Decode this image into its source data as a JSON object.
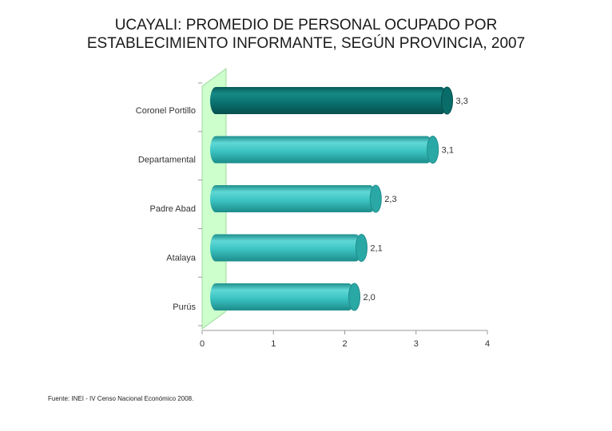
{
  "title_line1": "UCAYALI: PROMEDIO DE PERSONAL OCUPADO POR",
  "title_line2": "ESTABLECIMIENTO INFORMANTE, SEGÚN PROVINCIA, 2007",
  "source": "Fuente: INEI - IV Censo Nacional Económico 2008.",
  "colors": {
    "highlight_bar": "#0e7f7c",
    "bar": "#3ec8c8",
    "wall": "#ccffcc"
  },
  "chart_data": {
    "type": "bar",
    "orientation": "horizontal",
    "style": "3d-cylinder",
    "categories": [
      "Coronel Portillo",
      "Departamental",
      "Padre Abad",
      "Atalaya",
      "Purús"
    ],
    "values": [
      3.3,
      3.1,
      2.3,
      2.1,
      2.0
    ],
    "value_labels": [
      "3,3",
      "3,1",
      "2,3",
      "2,1",
      "2,0"
    ],
    "highlight": "Coronel Portillo",
    "xlim": [
      0,
      4
    ],
    "xticks": [
      "0",
      "1",
      "2",
      "3",
      "4"
    ],
    "grid": false,
    "legend": "none"
  }
}
